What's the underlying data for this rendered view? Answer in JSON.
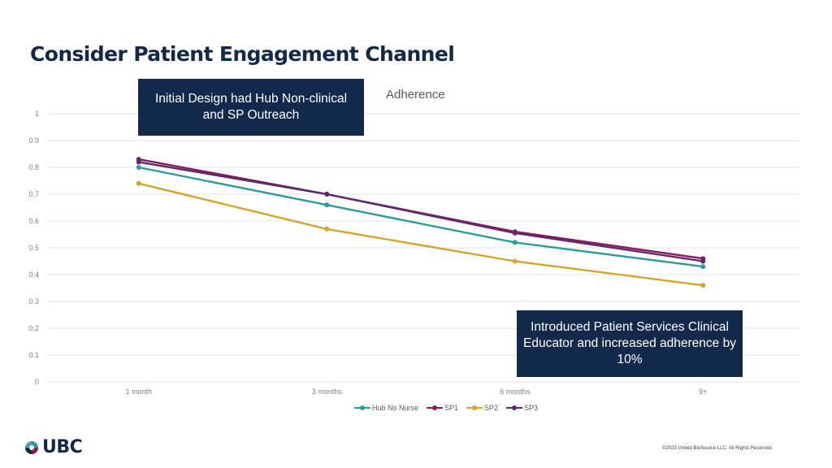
{
  "slide": {
    "title": "Consider Patient Engagement Channel",
    "callouts": [
      "Initial Design had Hub Non-clinical and SP Outreach",
      "Introduced Patient Services Clinical Educator and increased adherence by 10%"
    ],
    "logo_text": "UBC",
    "copyright": "©2023 United BioSource LLC. All Rights Reserved."
  },
  "chart_data": {
    "type": "line",
    "title": "Adherence",
    "xlabel": "",
    "ylabel": "",
    "categories": [
      "1 month",
      "3 months",
      "6 months",
      "9+"
    ],
    "ylim": [
      0,
      1
    ],
    "yticks": [
      "0",
      "0.1",
      "0.2",
      "0.3",
      "0.4",
      "0.5",
      "0.6",
      "0.7",
      "0.8",
      "0.9",
      "1"
    ],
    "grid": true,
    "legend_position": "bottom",
    "series": [
      {
        "name": "Hub No Nurse",
        "color": "#2E9B9B",
        "values": [
          0.8,
          0.66,
          0.52,
          0.43
        ]
      },
      {
        "name": "SP1",
        "color": "#8B1A5C",
        "values": [
          0.83,
          0.7,
          0.56,
          0.46
        ]
      },
      {
        "name": "SP2",
        "color": "#D4A52A",
        "values": [
          0.74,
          0.57,
          0.45,
          0.36
        ]
      },
      {
        "name": "SP3",
        "color": "#5B2A6E",
        "values": [
          0.82,
          0.7,
          0.555,
          0.45
        ]
      }
    ]
  }
}
